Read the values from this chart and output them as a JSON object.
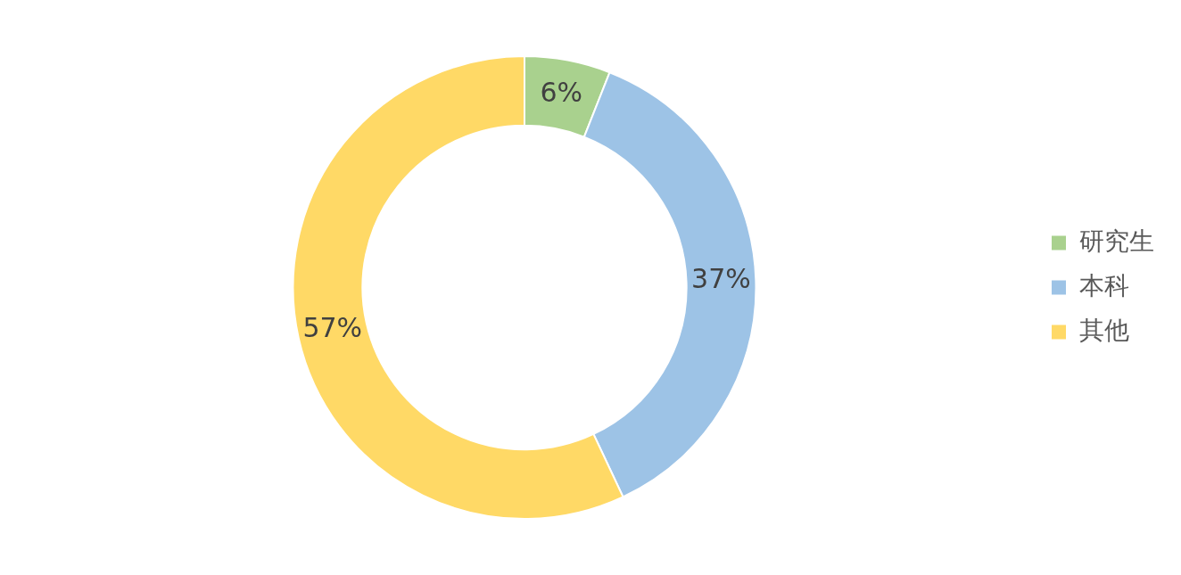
{
  "chart_data": {
    "type": "donut",
    "categories": [
      "研究生",
      "本科",
      "其他"
    ],
    "values": [
      6,
      37,
      57
    ],
    "colors": [
      "#a9d18e",
      "#9dc3e6",
      "#ffd966"
    ],
    "value_labels": [
      "6%",
      "37%",
      "57%"
    ],
    "legend": "right"
  }
}
